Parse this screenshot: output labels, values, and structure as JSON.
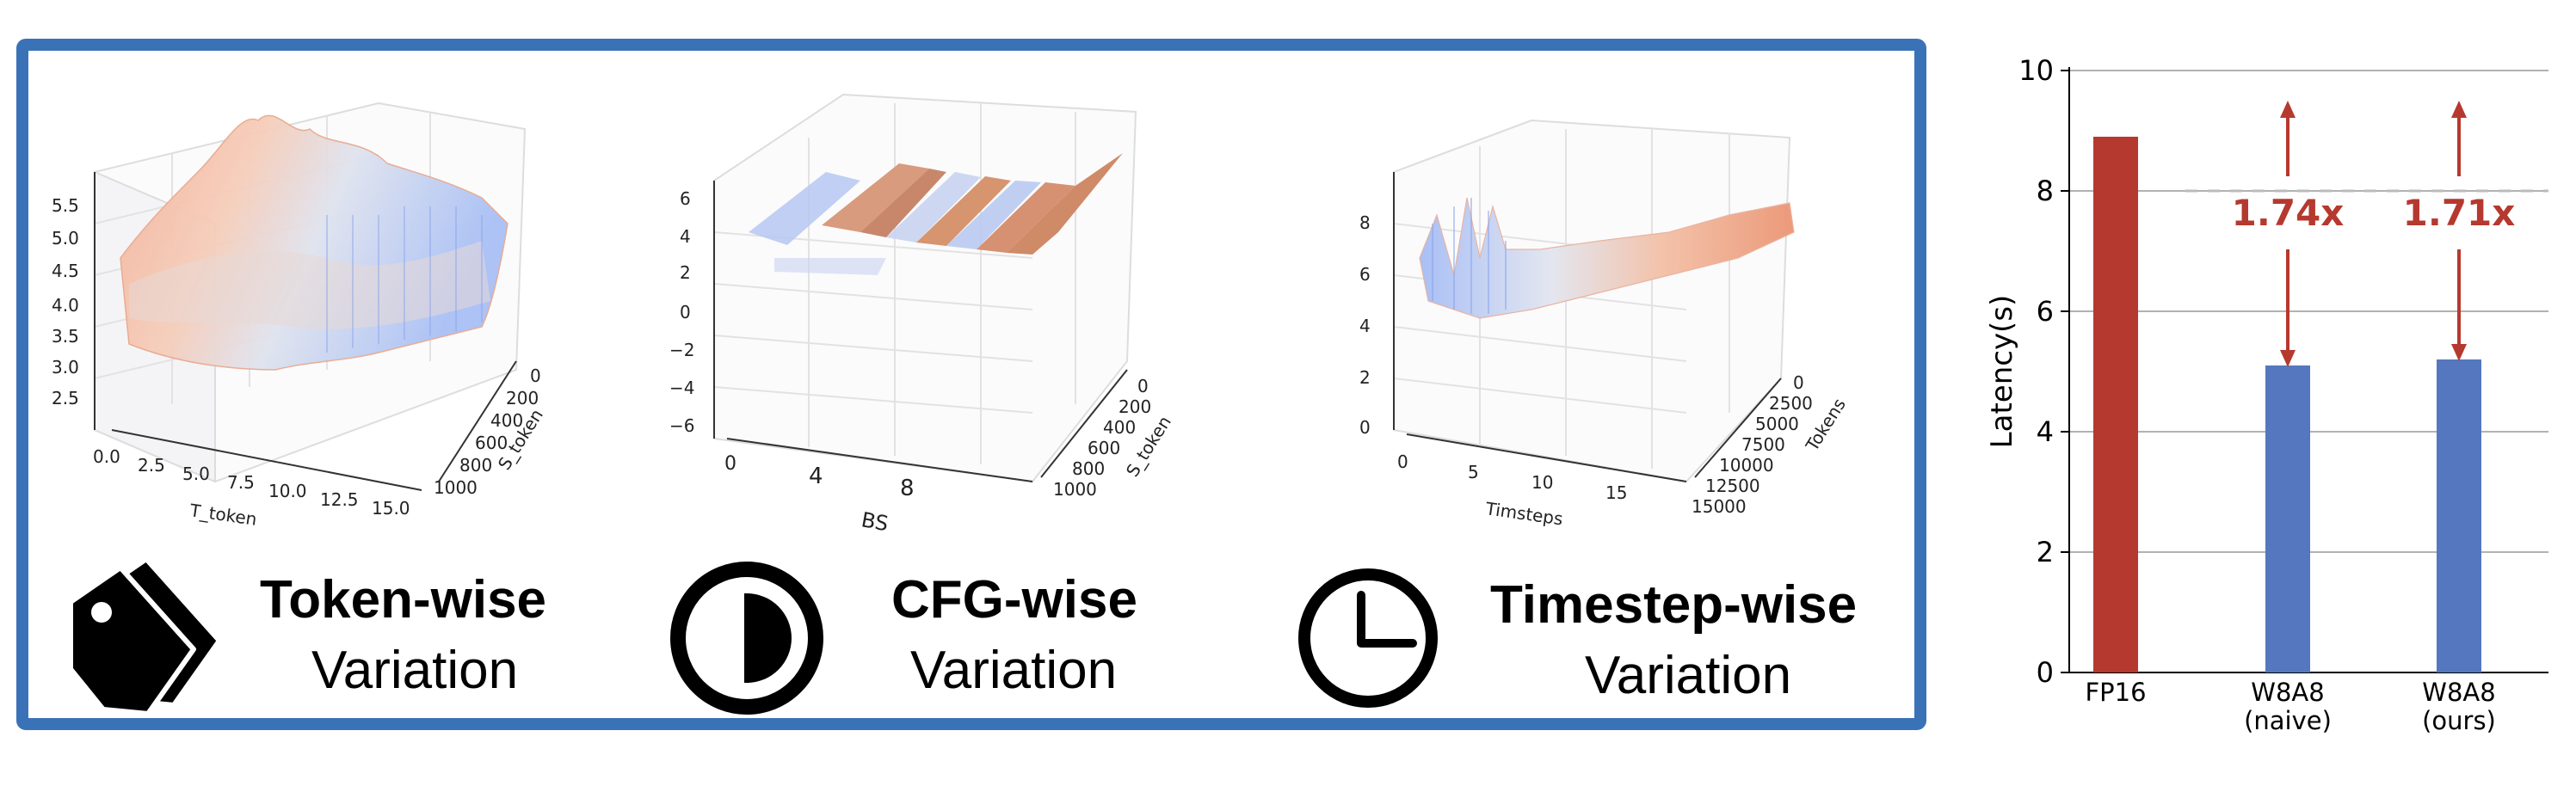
{
  "panels": [
    {
      "name": "token",
      "caption_bold": "Token-wise",
      "caption_normal": "Variation",
      "icon": "tag-icon",
      "x_label": "T_token",
      "y_label": "S_token",
      "x_ticks": [
        "0.0",
        "2.5",
        "5.0",
        "7.5",
        "10.0",
        "12.5",
        "15.0"
      ],
      "y_ticks": [
        "0",
        "200",
        "400",
        "600",
        "800",
        "1000"
      ],
      "z_ticks": [
        "2.5",
        "3.0",
        "3.5",
        "4.0",
        "4.5",
        "5.0",
        "5.5"
      ]
    },
    {
      "name": "cfg",
      "caption_bold": "CFG-wise",
      "caption_normal": "Variation",
      "icon": "half-circle-icon",
      "x_label": "BS",
      "y_label": "S_token",
      "x_ticks": [
        "0",
        "4",
        "8"
      ],
      "y_ticks": [
        "0",
        "200",
        "400",
        "600",
        "800",
        "1000"
      ],
      "z_ticks": [
        "−6",
        "−4",
        "−2",
        "0",
        "2",
        "4",
        "6"
      ]
    },
    {
      "name": "timestep",
      "caption_bold": "Timestep-wise",
      "caption_normal": "Variation",
      "icon": "clock-icon",
      "x_label": "Timsteps",
      "y_label": "Tokens",
      "x_ticks": [
        "0",
        "5",
        "10",
        "15"
      ],
      "y_ticks": [
        "0",
        "2500",
        "5000",
        "7500",
        "10000",
        "12500",
        "15000"
      ],
      "z_ticks": [
        "0",
        "2",
        "4",
        "6",
        "8"
      ]
    }
  ],
  "colors": {
    "frame": "#3a72b8",
    "fp16": "#b5392f",
    "w8a8": "#5577bf",
    "speedup": "#b5392f",
    "warm": "#e8957a",
    "cool": "#9eb8f5"
  },
  "chart_data": {
    "type": "bar",
    "categories": [
      [
        "FP16"
      ],
      [
        "W8A8",
        "(naive)"
      ],
      [
        "W8A8",
        "(ours)"
      ]
    ],
    "values": [
      8.9,
      5.1,
      5.2
    ],
    "ylabel": "Latency(s)",
    "ylim": [
      0,
      10
    ],
    "yticks": [
      0,
      2,
      4,
      6,
      8,
      10
    ],
    "grid": true,
    "reference_line": 8.0,
    "annotations": [
      "1.74x",
      "1.71x"
    ]
  }
}
